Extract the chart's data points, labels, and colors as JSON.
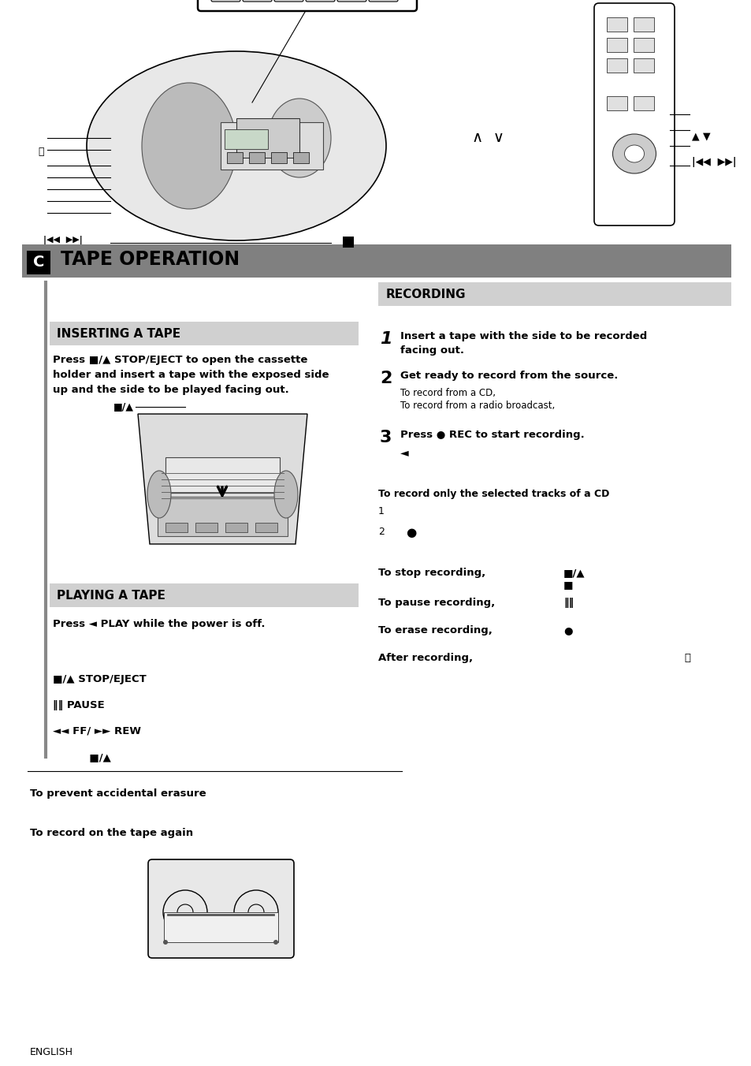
{
  "page_bg": "#ffffff",
  "header_bg": "#808080",
  "section_header_bg": "#d0d0d0",
  "title_box_text": "C",
  "title_text": "TAPE OPERATION",
  "inserting_title": "INSERTING A TAPE",
  "playing_title": "PLAYING A TAPE",
  "recording_title": "RECORDING",
  "footer_text": "ENGLISH",
  "prevent_text": "To prevent accidental erasure",
  "record_again_text": "To record on the tape again"
}
